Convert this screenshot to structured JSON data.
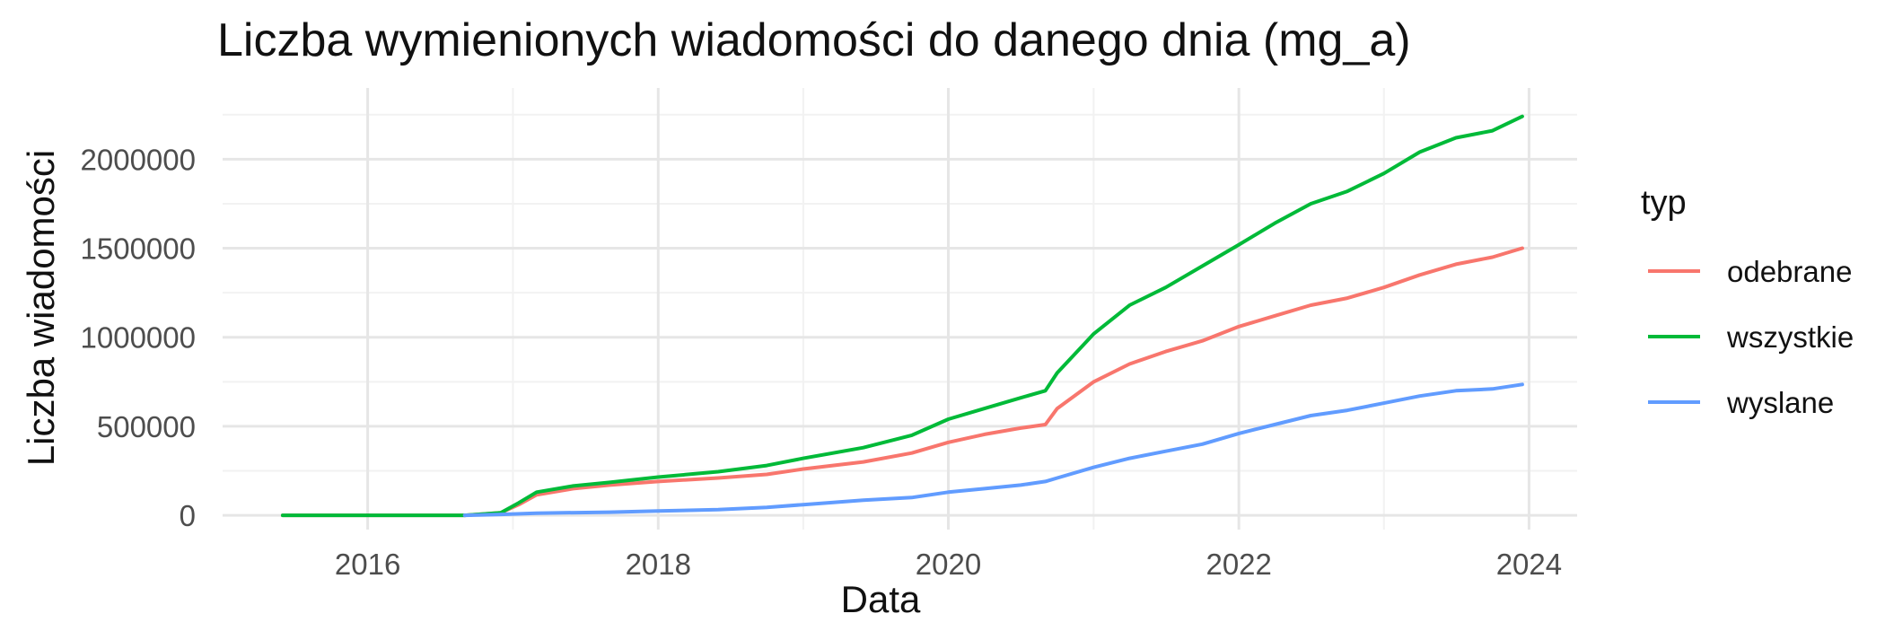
{
  "chart_data": {
    "type": "line",
    "title": "Liczba wymienionych wiadomości do danego dnia (mg_a)",
    "xlabel": "Data",
    "ylabel": "Liczba wiadomości",
    "x_axis_type": "date",
    "xlim": [
      "2015-01-01",
      "2024-05-01"
    ],
    "ylim": [
      -80000,
      2400000
    ],
    "x_ticks": [
      "2016-01-01",
      "2018-01-01",
      "2020-01-01",
      "2022-01-01",
      "2024-01-01"
    ],
    "x_tick_labels": [
      "2016",
      "2018",
      "2020",
      "2022",
      "2024"
    ],
    "y_ticks": [
      0,
      500000,
      1000000,
      1500000,
      2000000
    ],
    "y_tick_labels": [
      "0",
      "500000",
      "1000000",
      "1500000",
      "2000000"
    ],
    "grid": true,
    "legend_title": "typ",
    "legend_position": "right",
    "series": [
      {
        "name": "odebrane",
        "color": "#F8766D",
        "points": [
          [
            "2015-06-01",
            0
          ],
          [
            "2016-09-01",
            0
          ],
          [
            "2016-12-01",
            15000
          ],
          [
            "2017-01-15",
            60000
          ],
          [
            "2017-03-01",
            115000
          ],
          [
            "2017-06-01",
            150000
          ],
          [
            "2017-09-01",
            170000
          ],
          [
            "2018-01-01",
            190000
          ],
          [
            "2018-06-01",
            210000
          ],
          [
            "2018-10-01",
            230000
          ],
          [
            "2019-01-01",
            260000
          ],
          [
            "2019-06-01",
            300000
          ],
          [
            "2019-10-01",
            350000
          ],
          [
            "2020-01-01",
            410000
          ],
          [
            "2020-04-01",
            455000
          ],
          [
            "2020-07-01",
            490000
          ],
          [
            "2020-09-01",
            510000
          ],
          [
            "2020-10-01",
            600000
          ],
          [
            "2021-01-01",
            750000
          ],
          [
            "2021-04-01",
            850000
          ],
          [
            "2021-07-01",
            920000
          ],
          [
            "2021-10-01",
            980000
          ],
          [
            "2022-01-01",
            1060000
          ],
          [
            "2022-04-01",
            1120000
          ],
          [
            "2022-07-01",
            1180000
          ],
          [
            "2022-10-01",
            1220000
          ],
          [
            "2023-01-01",
            1280000
          ],
          [
            "2023-04-01",
            1350000
          ],
          [
            "2023-07-01",
            1410000
          ],
          [
            "2023-10-01",
            1450000
          ],
          [
            "2023-12-15",
            1500000
          ]
        ]
      },
      {
        "name": "wszystkie",
        "color": "#00BA38",
        "points": [
          [
            "2015-06-01",
            0
          ],
          [
            "2016-09-01",
            0
          ],
          [
            "2016-12-01",
            15000
          ],
          [
            "2017-01-15",
            70000
          ],
          [
            "2017-03-01",
            130000
          ],
          [
            "2017-06-01",
            165000
          ],
          [
            "2017-09-01",
            185000
          ],
          [
            "2018-01-01",
            215000
          ],
          [
            "2018-06-01",
            245000
          ],
          [
            "2018-10-01",
            280000
          ],
          [
            "2019-01-01",
            320000
          ],
          [
            "2019-06-01",
            380000
          ],
          [
            "2019-10-01",
            450000
          ],
          [
            "2020-01-01",
            540000
          ],
          [
            "2020-04-01",
            600000
          ],
          [
            "2020-07-01",
            660000
          ],
          [
            "2020-09-01",
            700000
          ],
          [
            "2020-10-01",
            800000
          ],
          [
            "2021-01-01",
            1020000
          ],
          [
            "2021-04-01",
            1180000
          ],
          [
            "2021-07-01",
            1280000
          ],
          [
            "2021-10-01",
            1400000
          ],
          [
            "2022-01-01",
            1520000
          ],
          [
            "2022-04-01",
            1640000
          ],
          [
            "2022-07-01",
            1750000
          ],
          [
            "2022-10-01",
            1820000
          ],
          [
            "2023-01-01",
            1920000
          ],
          [
            "2023-04-01",
            2040000
          ],
          [
            "2023-07-01",
            2120000
          ],
          [
            "2023-10-01",
            2160000
          ],
          [
            "2023-12-15",
            2240000
          ]
        ]
      },
      {
        "name": "wyslane",
        "color": "#619CFF",
        "points": [
          [
            "2016-09-01",
            0
          ],
          [
            "2016-12-01",
            5000
          ],
          [
            "2017-03-01",
            12000
          ],
          [
            "2017-09-01",
            18000
          ],
          [
            "2018-01-01",
            25000
          ],
          [
            "2018-06-01",
            32000
          ],
          [
            "2018-10-01",
            45000
          ],
          [
            "2019-01-01",
            60000
          ],
          [
            "2019-06-01",
            85000
          ],
          [
            "2019-10-01",
            100000
          ],
          [
            "2020-01-01",
            130000
          ],
          [
            "2020-04-01",
            150000
          ],
          [
            "2020-07-01",
            170000
          ],
          [
            "2020-09-01",
            190000
          ],
          [
            "2020-10-01",
            210000
          ],
          [
            "2021-01-01",
            270000
          ],
          [
            "2021-04-01",
            320000
          ],
          [
            "2021-07-01",
            360000
          ],
          [
            "2021-10-01",
            400000
          ],
          [
            "2022-01-01",
            460000
          ],
          [
            "2022-04-01",
            510000
          ],
          [
            "2022-07-01",
            560000
          ],
          [
            "2022-10-01",
            590000
          ],
          [
            "2023-01-01",
            630000
          ],
          [
            "2023-04-01",
            670000
          ],
          [
            "2023-07-01",
            700000
          ],
          [
            "2023-10-01",
            710000
          ],
          [
            "2023-12-15",
            735000
          ]
        ]
      }
    ]
  }
}
